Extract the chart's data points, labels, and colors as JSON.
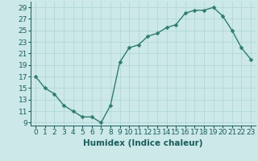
{
  "x": [
    0,
    1,
    2,
    3,
    4,
    5,
    6,
    7,
    8,
    9,
    10,
    11,
    12,
    13,
    14,
    15,
    16,
    17,
    18,
    19,
    20,
    21,
    22,
    23
  ],
  "y": [
    17,
    15,
    14,
    12,
    11,
    10,
    10,
    9,
    12,
    19.5,
    22,
    22.5,
    24,
    24.5,
    25.5,
    26,
    28,
    28.5,
    28.5,
    29,
    27.5,
    25,
    22,
    20
  ],
  "line_color": "#2e7d6e",
  "marker_color": "#2e7d6e",
  "bg_color": "#cce8e8",
  "grid_color": "#add4d4",
  "xlabel": "Humidex (Indice chaleur)",
  "xlim": [
    -0.5,
    23.5
  ],
  "ylim": [
    8.5,
    30
  ],
  "yticks": [
    9,
    11,
    13,
    15,
    17,
    19,
    21,
    23,
    25,
    27,
    29
  ],
  "xticks": [
    0,
    1,
    2,
    3,
    4,
    5,
    6,
    7,
    8,
    9,
    10,
    11,
    12,
    13,
    14,
    15,
    16,
    17,
    18,
    19,
    20,
    21,
    22,
    23
  ],
  "font_color": "#1a5c5c",
  "xlabel_fontsize": 7.5,
  "tick_fontsize": 6.5,
  "line_width": 1.0,
  "marker_size": 2.5
}
